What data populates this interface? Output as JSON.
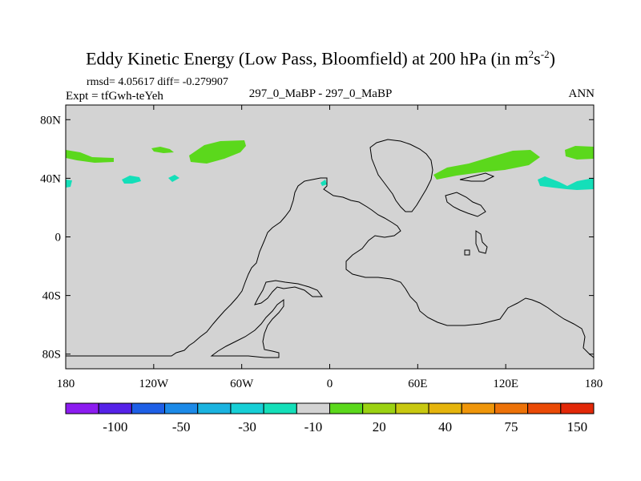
{
  "header": {
    "title_main": "Eddy Kinetic Energy (Low Pass, Bloomfield) at 200 hPa (in m",
    "title_sup1": "2",
    "title_mid": "s",
    "title_sup2": "-2",
    "title_close": ")",
    "stats": "rmsd= 4.05617 diff= -0.279907",
    "experiment": "Expt = tfGwh-teYeh",
    "comparison": "297_0_MaBP - 297_0_MaBP",
    "season": "ANN"
  },
  "map": {
    "background_color": "#d3d3d3",
    "lat_labels": [
      "80N",
      "40N",
      "0",
      "40S",
      "80S"
    ],
    "lon_labels": [
      "180",
      "120W",
      "60W",
      "0",
      "60E",
      "120E",
      "180"
    ]
  },
  "colorbar": {
    "colors": [
      "#8c1cf0",
      "#5522e8",
      "#1e5fe6",
      "#1c8ae8",
      "#1ab3e0",
      "#17cfd6",
      "#14dfb9",
      "#d3d3d3",
      "#5bd81c",
      "#9bd212",
      "#c8c810",
      "#e5b40c",
      "#ef960a",
      "#ed7208",
      "#ea4a06",
      "#e22808"
    ],
    "labels": [
      "-100",
      "-50",
      "-30",
      "-10",
      "20",
      "40",
      "75",
      "150"
    ]
  },
  "colors": {
    "positive_green": "#5bd81c",
    "negative_teal": "#14dfb9",
    "coastline": "#000000"
  }
}
